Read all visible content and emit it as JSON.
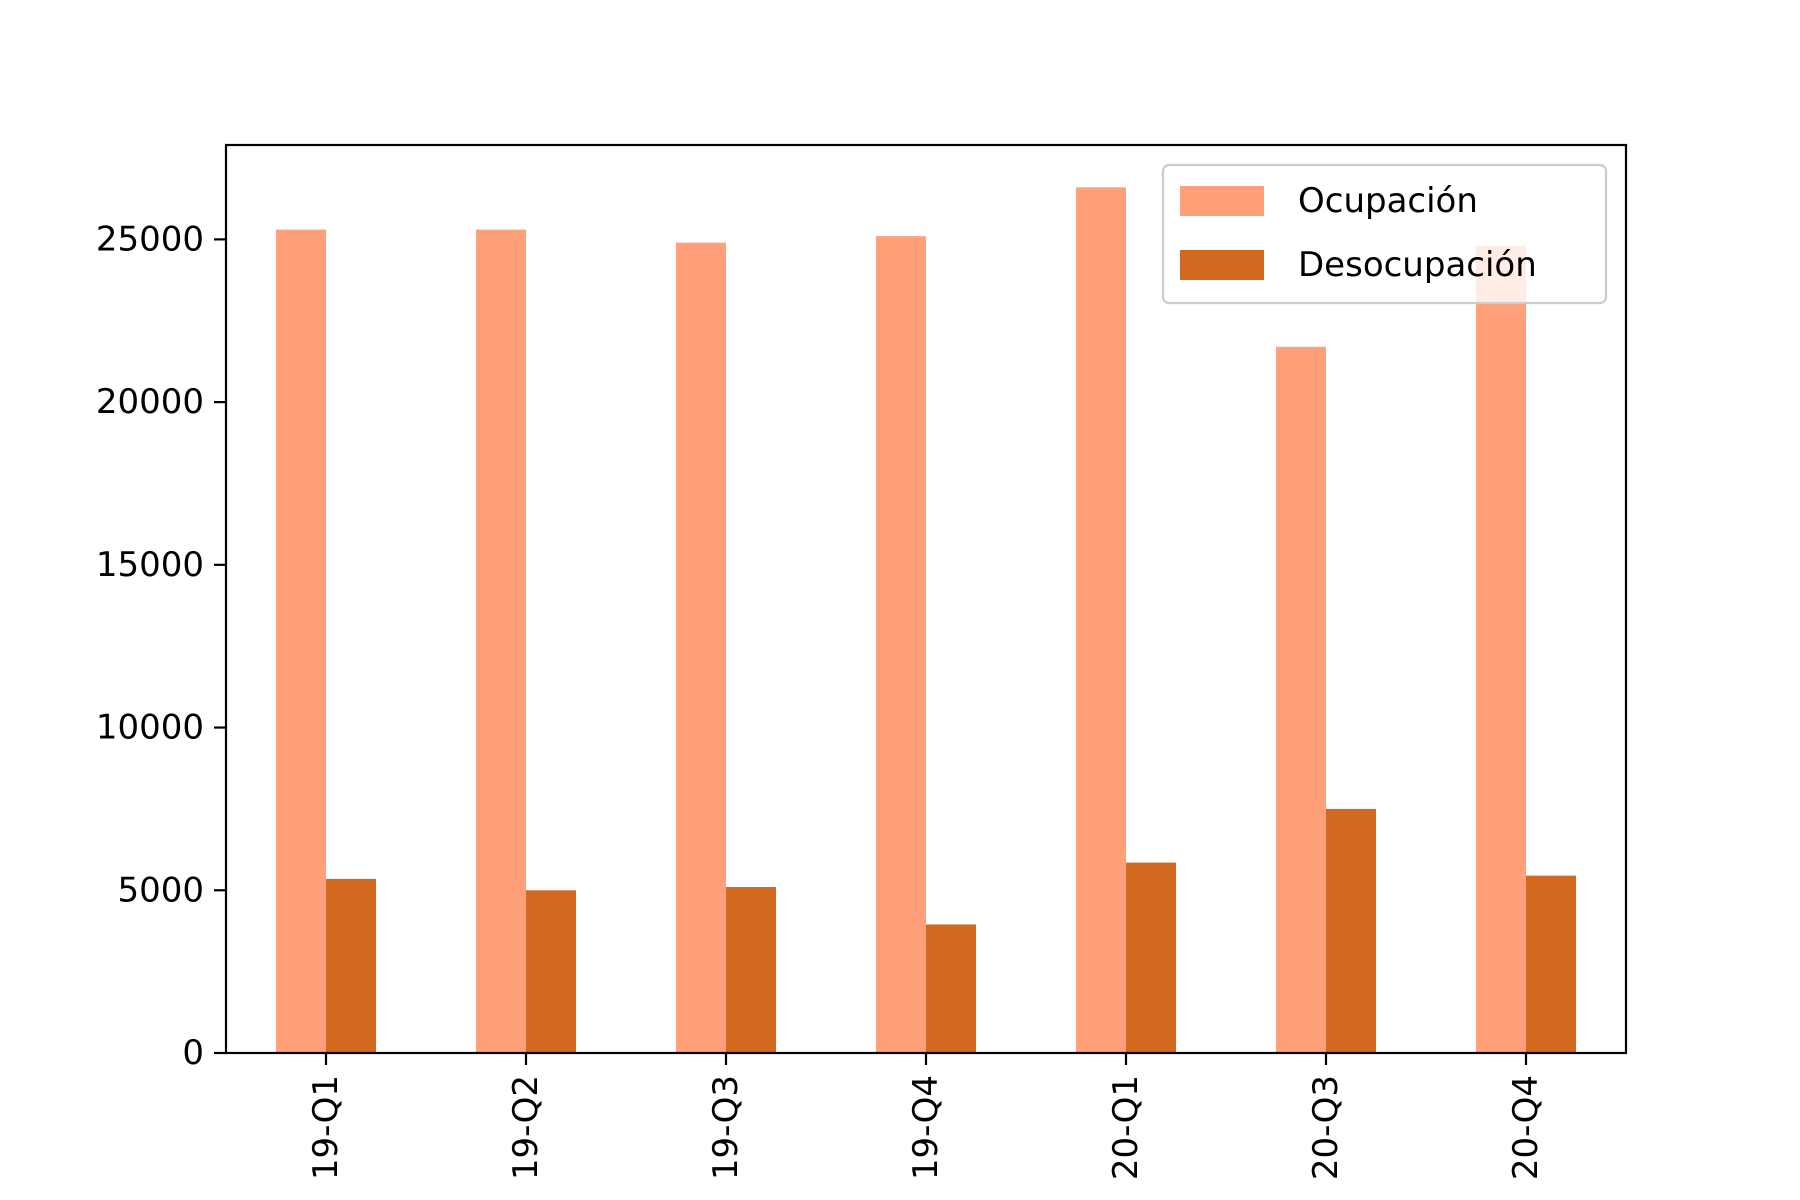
{
  "chart_data": {
    "type": "bar",
    "title": "",
    "xlabel": "",
    "ylabel": "",
    "categories": [
      "2019-Q1",
      "2019-Q2",
      "2019-Q3",
      "2019-Q4",
      "2020-Q1",
      "2020-Q3",
      "2020-Q4"
    ],
    "visible_tick_labels": [
      "19-Q1",
      "19-Q2",
      "19-Q3",
      "19-Q4",
      "20-Q1",
      "20-Q3",
      "20-Q4"
    ],
    "series": [
      {
        "name": "Ocupación",
        "color": "#ffa07a",
        "values": [
          25300,
          25300,
          24900,
          25100,
          26600,
          21700,
          24800
        ]
      },
      {
        "name": "Desocupación",
        "color": "#d2691e",
        "values": [
          5350,
          5000,
          5100,
          3950,
          5850,
          7500,
          5450
        ]
      }
    ],
    "ylim": [
      0,
      27900
    ],
    "yticks": [
      0,
      5000,
      10000,
      15000,
      20000,
      25000
    ],
    "grid": false,
    "legend_position": "top-right"
  }
}
